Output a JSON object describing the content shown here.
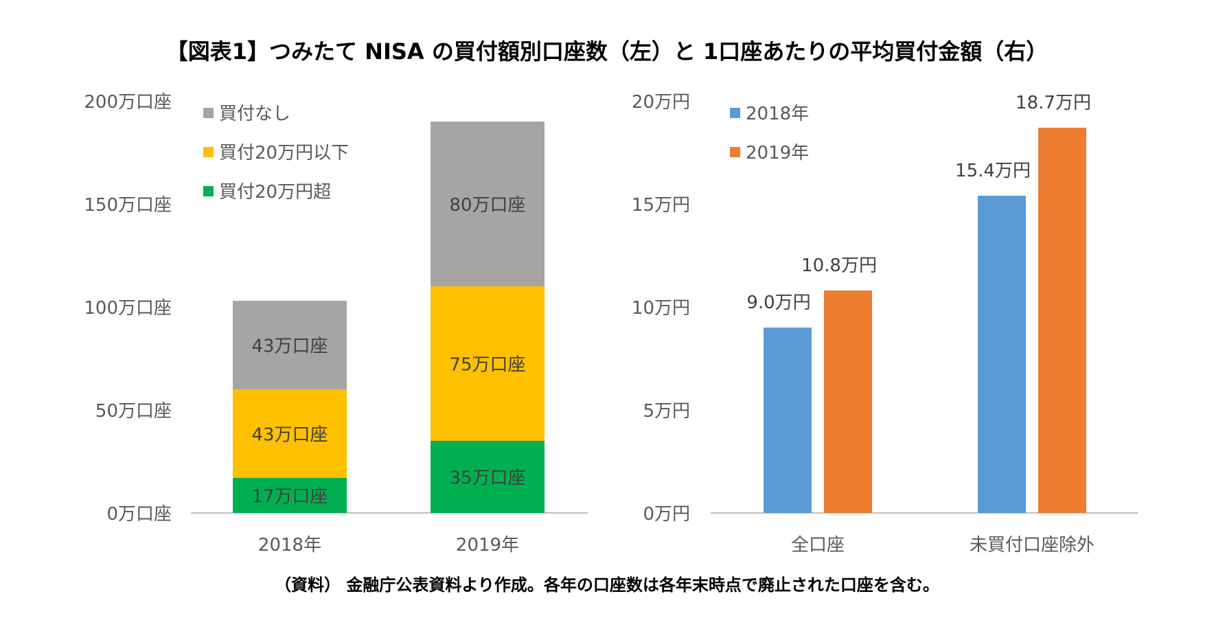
{
  "title": "【図表1】つみたて NISA の買付額別口座数（左）と 1口座あたりの平均買付金額（右）",
  "footnote": "（資料） 金融庁公表資料より作成。各年の口座数は各年末時点で廃止された口座を含む。",
  "colors": {
    "no_purchase": "#A5A5A5",
    "under_20": "#FFC000",
    "over_20": "#00B050",
    "y2018": "#5B9BD5",
    "y2019": "#ED7D31",
    "axis": "#BFBFBF"
  },
  "chart_data": [
    {
      "type": "bar",
      "stacked": true,
      "categories": [
        "2018年",
        "2019年"
      ],
      "series": [
        {
          "name": "買付20万円超",
          "values": [
            17,
            35
          ],
          "labels": [
            "17万口座",
            "35万口座"
          ]
        },
        {
          "name": "買付20万円以下",
          "values": [
            43,
            75
          ],
          "labels": [
            "43万口座",
            "75万口座"
          ]
        },
        {
          "name": "買付なし",
          "values": [
            43,
            80
          ],
          "labels": [
            "43万口座",
            "80万口座"
          ]
        }
      ],
      "ylim": [
        0,
        200
      ],
      "yticks": [
        0,
        50,
        100,
        150,
        200
      ],
      "ytick_labels": [
        "0万口座",
        "50万口座",
        "100万口座",
        "150万口座",
        "200万口座"
      ],
      "legend_order": [
        "買付なし",
        "買付20万円以下",
        "買付20万円超"
      ],
      "legend": "top-left",
      "grid": false
    },
    {
      "type": "bar",
      "categories": [
        "全口座",
        "未買付口座除外"
      ],
      "series": [
        {
          "name": "2018年",
          "values": [
            9.0,
            15.4
          ],
          "labels": [
            "9.0万円",
            "15.4万円"
          ]
        },
        {
          "name": "2019年",
          "values": [
            10.8,
            18.7
          ],
          "labels": [
            "10.8万円",
            "18.7万円"
          ]
        }
      ],
      "ylim": [
        0,
        20
      ],
      "yticks": [
        0,
        5,
        10,
        15,
        20
      ],
      "ytick_labels": [
        "0万円",
        "5万円",
        "10万円",
        "15万円",
        "20万円"
      ],
      "legend": "top-left",
      "grid": false
    }
  ]
}
